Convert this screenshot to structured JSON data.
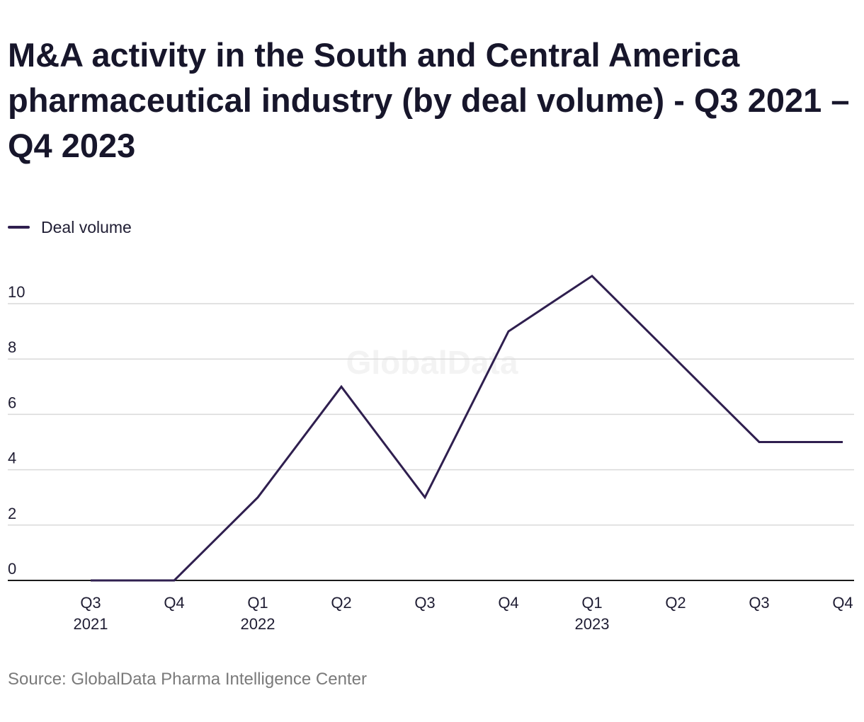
{
  "title": "M&A activity in the South and Central America pharmaceutical industry (by deal volume) - Q3 2021 – Q4 2023",
  "source": "Source: GlobalData Pharma Intelligence Center",
  "watermark": "GlobalData",
  "colors": {
    "line": "#2f1f4f",
    "grid": "#d9d9d9",
    "axis": "#1a1a1a",
    "tick_text": "#1f1d33",
    "watermark": "#f3f3f3"
  },
  "chart_data": {
    "type": "line",
    "title": "M&A activity in the South and Central America pharmaceutical industry (by deal volume) - Q3 2021 – Q4 2023",
    "xlabel": "",
    "ylabel": "",
    "categories": [
      {
        "quarter": "Q3",
        "year": "2021"
      },
      {
        "quarter": "Q4",
        "year": ""
      },
      {
        "quarter": "Q1",
        "year": "2022"
      },
      {
        "quarter": "Q2",
        "year": ""
      },
      {
        "quarter": "Q3",
        "year": ""
      },
      {
        "quarter": "Q4",
        "year": ""
      },
      {
        "quarter": "Q1",
        "year": "2023"
      },
      {
        "quarter": "Q2",
        "year": ""
      },
      {
        "quarter": "Q3",
        "year": ""
      },
      {
        "quarter": "Q4",
        "year": ""
      }
    ],
    "series": [
      {
        "name": "Deal volume",
        "values": [
          0,
          0,
          3,
          7,
          3,
          9,
          11,
          8,
          5,
          5
        ]
      }
    ],
    "ylim": [
      0,
      11
    ],
    "yticks": [
      0,
      2,
      4,
      6,
      8,
      10
    ],
    "grid": true,
    "legend": "top-left"
  }
}
